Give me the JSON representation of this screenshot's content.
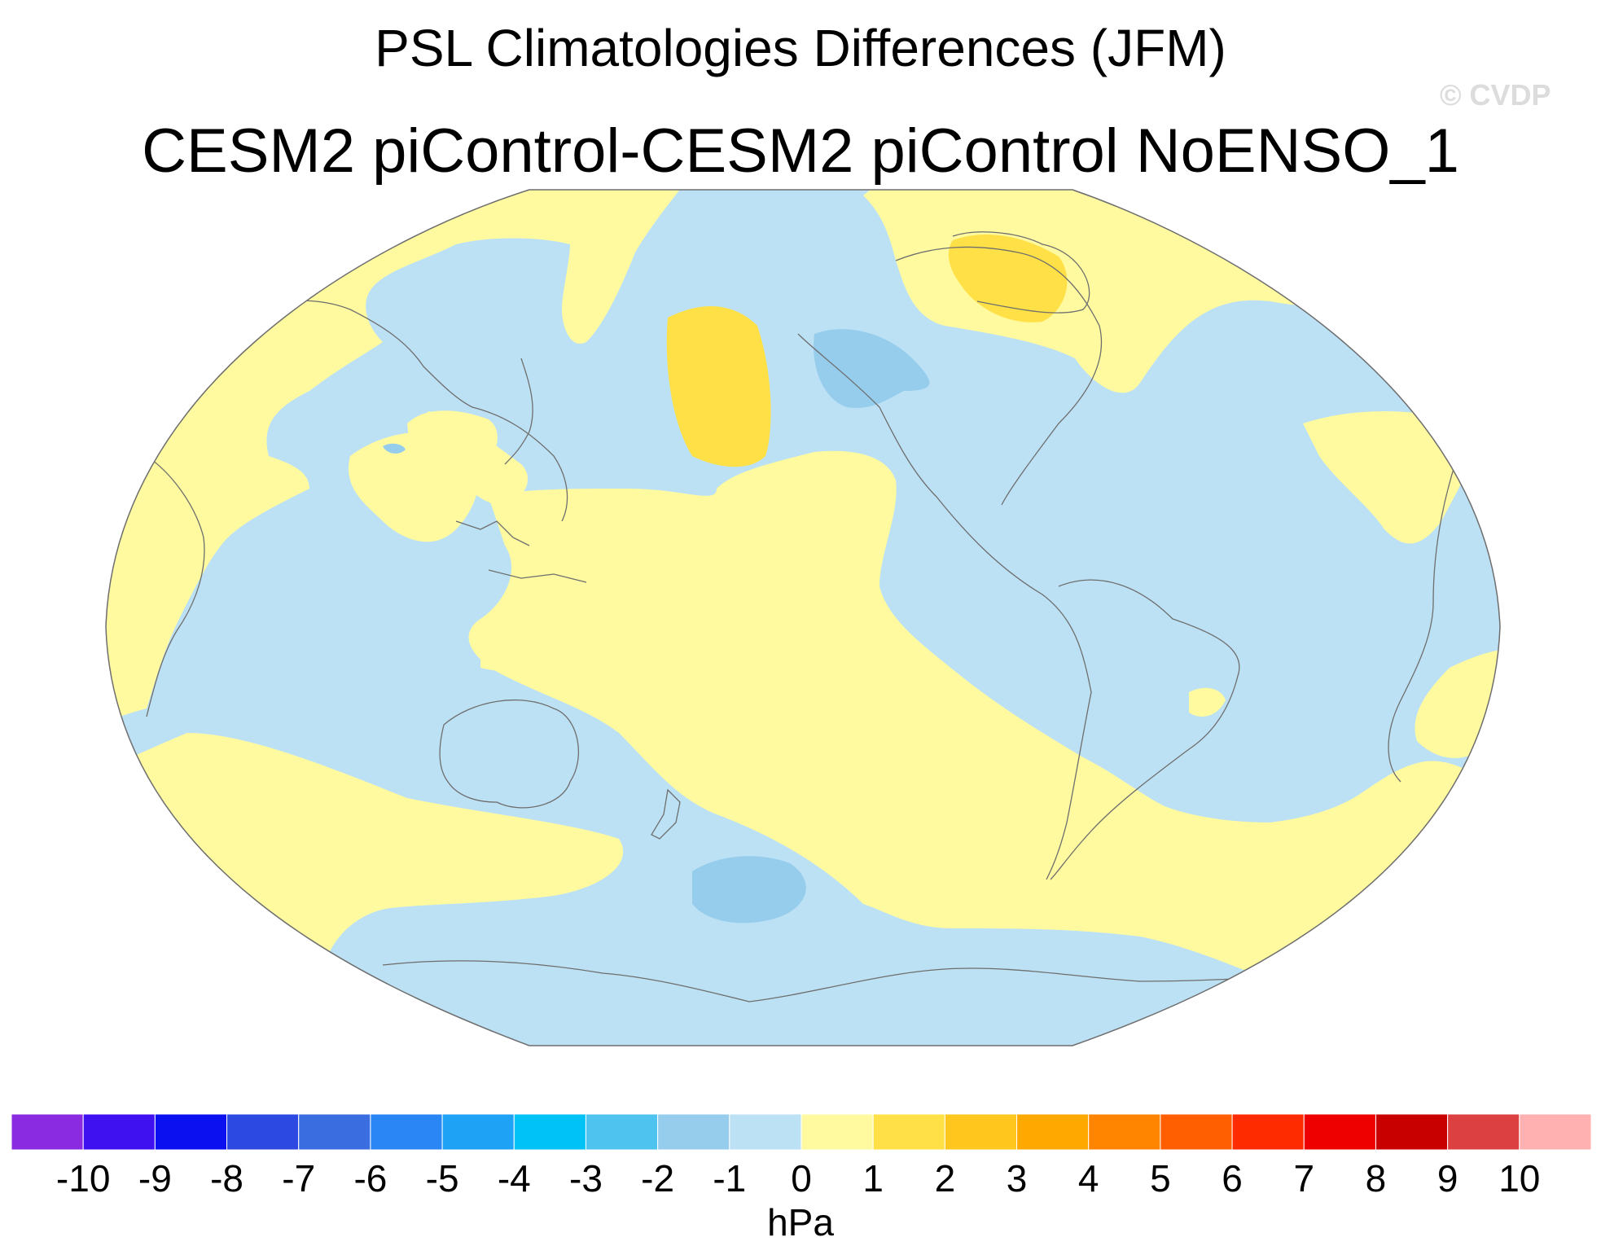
{
  "title": "PSL Climatologies Differences (JFM)",
  "subtitle": "CESM2 piControl-CESM2 piControl NoENSO_1",
  "watermark": "© CVDP",
  "colorbar": {
    "unit": "hPa",
    "ticks": [
      "-10",
      "-9",
      "-8",
      "-7",
      "-6",
      "-5",
      "-4",
      "-3",
      "-2",
      "-1",
      "0",
      "1",
      "2",
      "3",
      "4",
      "5",
      "6",
      "7",
      "8",
      "9",
      "10"
    ],
    "colors": [
      "#8a2be2",
      "#3f10f0",
      "#0a10f0",
      "#2c4ae2",
      "#3a6de0",
      "#2a86f5",
      "#1ea2f5",
      "#00c2f7",
      "#4fc3f0",
      "#96cdec",
      "#bde1f4",
      "#fffaa0",
      "#ffe147",
      "#ffc61e",
      "#ffa800",
      "#ff8500",
      "#ff5f00",
      "#ff2b00",
      "#ee0000",
      "#c80000",
      "#dc4040",
      "#ffb1b1"
    ]
  },
  "map": {
    "projection": "robinson",
    "field": "sea-level pressure difference",
    "ocean_background": "#bde1f4",
    "positive_fill": "#fffaa0",
    "strong_positive_fill": "#ffe147",
    "strong_negative_fill": "#96cdec",
    "coast_color": "#6e6e6e"
  }
}
